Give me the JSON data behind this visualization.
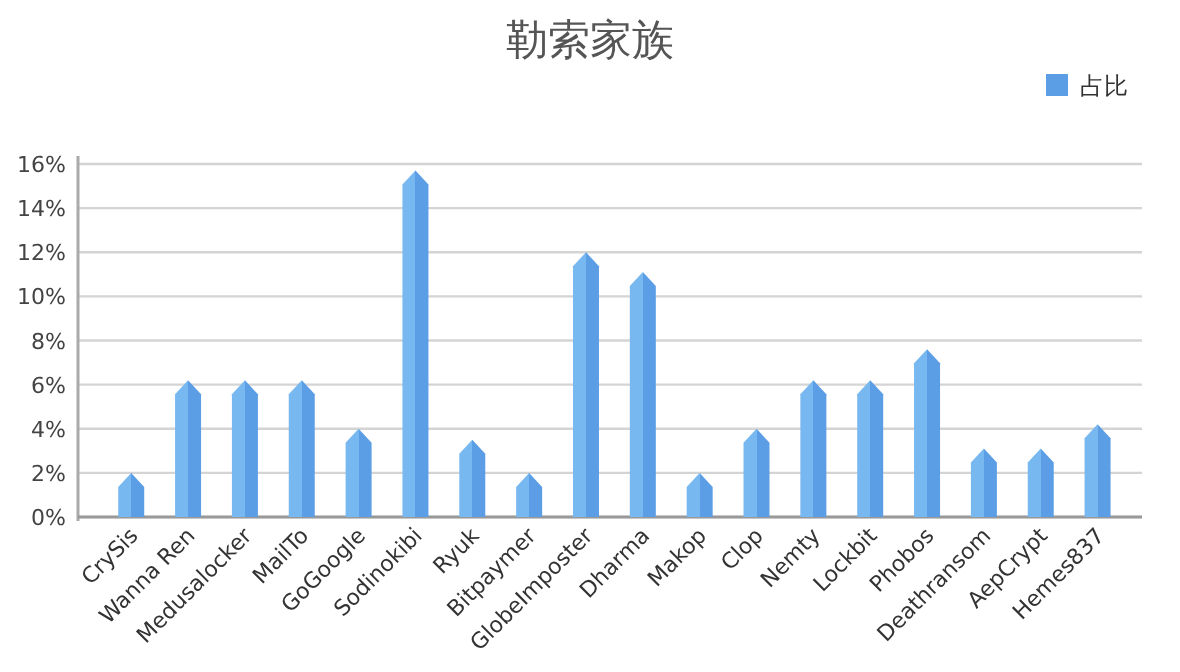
{
  "chart_data": {
    "type": "bar",
    "title": "勒索家族",
    "categories": [
      "CrySis",
      "Wanna Ren",
      "Medusalocker",
      "MailTo",
      "GoGoogle",
      "Sodinokibi",
      "Ryuk",
      "Bitpaymer",
      "GlobeImposter",
      "Dharma",
      "Makop",
      "Clop",
      "Nemty",
      "Lockbit",
      "Phobos",
      "Deathransom",
      "AepCrypt",
      "Hemes837"
    ],
    "series": [
      {
        "name": "占比",
        "color": "#5b9ee6",
        "values": [
          2.0,
          6.2,
          6.2,
          6.2,
          4.0,
          15.7,
          3.5,
          2.0,
          12.0,
          11.1,
          2.0,
          4.0,
          6.2,
          6.2,
          7.6,
          3.1,
          3.1,
          4.2
        ]
      }
    ],
    "ylim": [
      0,
      16
    ],
    "yticks": [
      {
        "value": 0,
        "label": "0%"
      },
      {
        "value": 2,
        "label": "2%"
      },
      {
        "value": 4,
        "label": "4%"
      },
      {
        "value": 6,
        "label": "6%"
      },
      {
        "value": 8,
        "label": "8%"
      },
      {
        "value": 10,
        "label": "10%"
      },
      {
        "value": 12,
        "label": "12%"
      },
      {
        "value": 14,
        "label": "14%"
      },
      {
        "value": 16,
        "label": "16%"
      }
    ],
    "grid": "y",
    "legend": "top right"
  }
}
